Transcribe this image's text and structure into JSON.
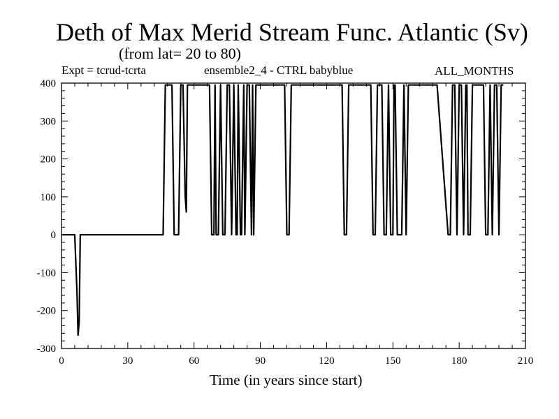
{
  "chart_data": {
    "type": "line",
    "title": "Deth of Max Merid Stream Func. Atlantic (Sv)",
    "subtitle": "(from lat= 20 to 80)",
    "annotations": {
      "expt": "Expt = tcrud-tcrta",
      "ensemble": "ensemble2_4 - CTRL babyblue",
      "months": "ALL_MONTHS"
    },
    "xlabel": "Time (in years since start)",
    "ylabel": "",
    "xlim": [
      0,
      210
    ],
    "ylim": [
      -300,
      400
    ],
    "xticks": [
      "0",
      "30",
      "60",
      "90",
      "120",
      "150",
      "180",
      "210"
    ],
    "yticks": [
      "400",
      "300",
      "200",
      "100",
      "0",
      "-100",
      "-200",
      "-300"
    ],
    "grid": false,
    "series": [
      {
        "x": [
          0,
          6,
          7,
          7.5,
          8,
          8.5,
          9,
          10,
          46,
          47,
          48,
          49,
          50,
          51,
          53,
          54,
          55,
          56,
          56.5,
          57,
          58,
          59,
          67,
          68,
          69,
          69.5,
          70,
          71,
          72,
          73,
          74,
          75,
          76,
          77,
          78,
          79,
          79.5,
          80,
          81,
          81.5,
          82,
          82.5,
          83,
          84,
          85,
          86,
          86.5,
          87,
          88,
          89,
          90,
          101,
          102,
          103,
          104,
          127,
          128,
          129,
          130,
          140,
          141,
          142,
          143,
          145,
          146,
          147,
          148,
          149,
          150,
          150.5,
          151,
          152,
          154,
          155,
          156,
          157,
          169,
          170,
          175,
          176,
          177,
          178,
          179,
          180,
          181,
          182,
          183,
          183.5,
          184,
          185,
          186,
          190,
          191,
          192,
          193,
          194,
          195,
          196,
          197,
          198,
          199,
          200
        ],
        "y": [
          0,
          0,
          -150,
          -265,
          -230,
          0,
          0,
          0,
          0,
          395,
          395,
          395,
          395,
          0,
          0,
          395,
          395,
          100,
          60,
          395,
          395,
          395,
          395,
          0,
          0,
          395,
          0,
          0,
          395,
          0,
          0,
          395,
          395,
          0,
          395,
          0,
          0,
          395,
          0,
          0,
          200,
          395,
          0,
          395,
          395,
          0,
          395,
          0,
          395,
          395,
          395,
          395,
          0,
          0,
          395,
          395,
          0,
          0,
          395,
          395,
          0,
          0,
          395,
          395,
          0,
          0,
          395,
          0,
          0,
          395,
          395,
          0,
          0,
          395,
          0,
          395,
          395,
          395,
          0,
          0,
          395,
          395,
          0,
          395,
          395,
          0,
          395,
          395,
          0,
          0,
          395,
          395,
          395,
          0,
          0,
          395,
          0,
          395,
          395,
          0,
          395,
          395
        ]
      }
    ]
  }
}
